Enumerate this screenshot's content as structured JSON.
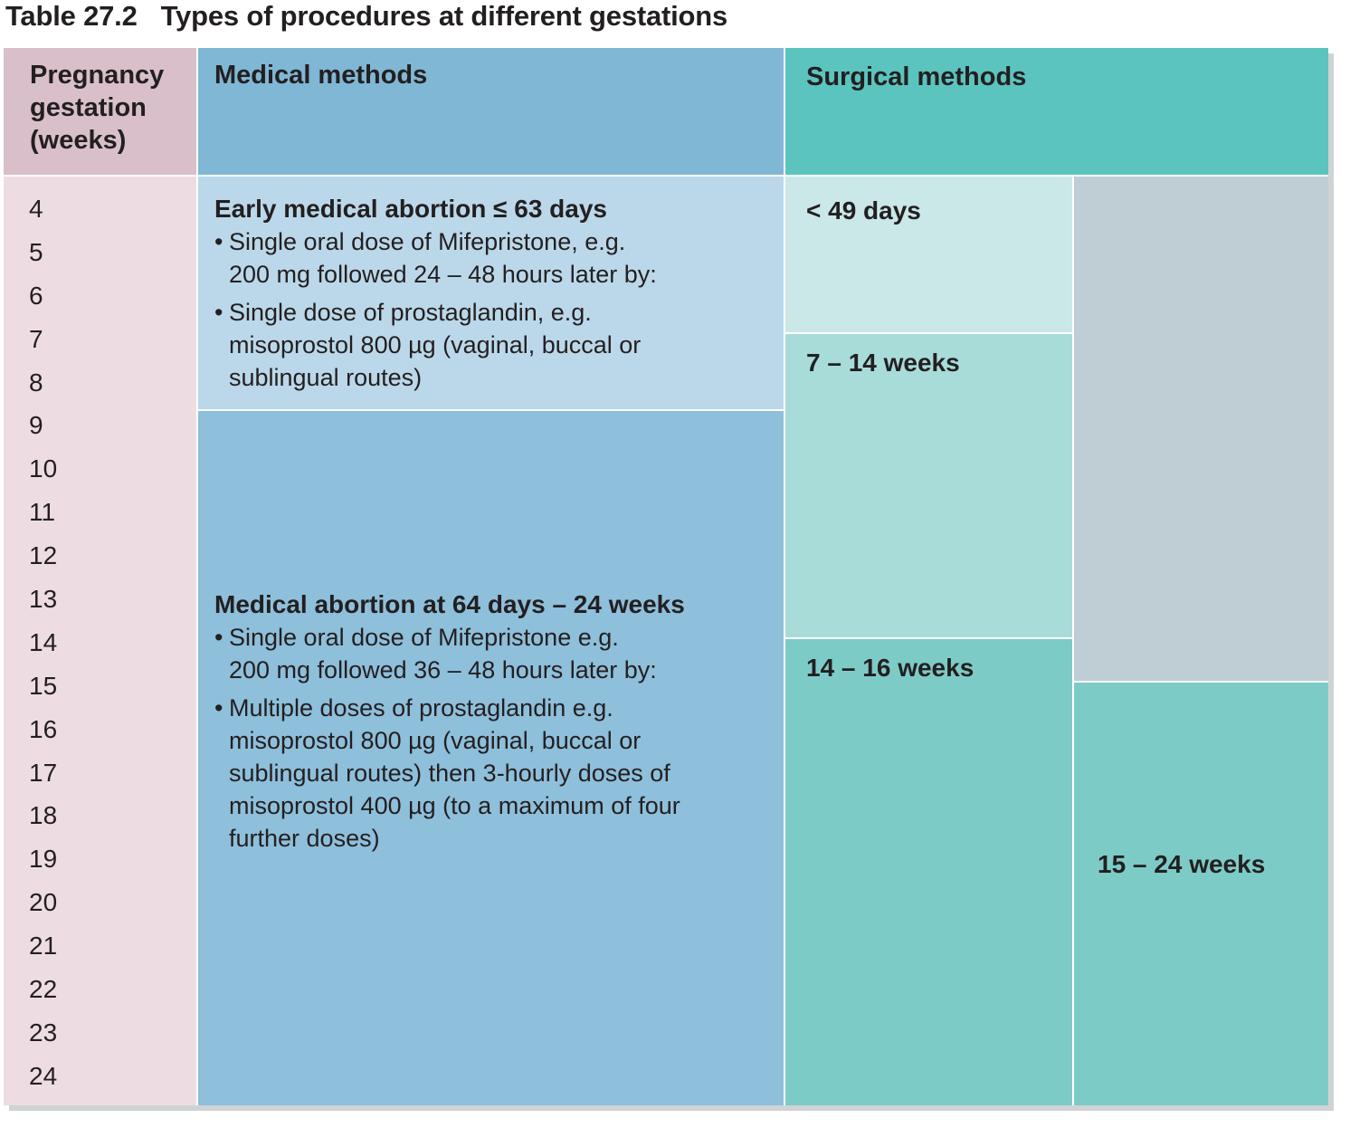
{
  "caption": {
    "number": "Table 27.2",
    "title": "Types of procedures at different gestations"
  },
  "headers": {
    "gestation": [
      "Pregnancy",
      "gestation",
      "(weeks)"
    ],
    "medical": "Medical methods",
    "surgical": "Surgical methods"
  },
  "weeks": [
    "4",
    "5",
    "6",
    "7",
    "8",
    "9",
    "10",
    "11",
    "12",
    "13",
    "14",
    "15",
    "16",
    "17",
    "18",
    "19",
    "20",
    "21",
    "22",
    "23",
    "24"
  ],
  "medical": {
    "early": {
      "heading": "Early medical abortion ≤ 63 days",
      "bullet1": [
        "Single oral dose of Mifepristone, e.g.",
        "200 mg followed 24 – 48 hours later by:"
      ],
      "bullet2": [
        "Single dose of prostaglandin, e.g.",
        "misoprostol 800 µg (vaginal, buccal or",
        "sublingual routes)"
      ]
    },
    "late": {
      "heading": "Medical abortion at 64 days – 24 weeks",
      "bullet1": [
        "Single oral dose of Mifepristone e.g.",
        "200 mg followed 36 – 48 hours later by:"
      ],
      "bullet2": [
        "Multiple doses of prostaglandin e.g.",
        "misoprostol 800 µg (vaginal, buccal or",
        "sublingual routes) then 3-hourly doses of",
        "misoprostol 400 µg (to a maximum of four",
        "further doses)"
      ]
    }
  },
  "surgical": {
    "s1": "< 49 days",
    "s2": "7 – 14 weeks",
    "s3": "14 – 16 weeks",
    "s4": "15 – 24 weeks"
  },
  "colors": {
    "gestation_header": "#d9bfc9",
    "gestation_body": "#eddde3",
    "medical_header": "#7fb7d5",
    "medical_early": "#bbd8ea",
    "medical_late": "#8ebfdb",
    "surgical_header": "#5bc4bf",
    "surgical_s1": "#c9e8e7",
    "surgical_s2": "#a7dcd9",
    "surgical_s3": "#7dcbc7",
    "surgical_s4": "#7dcbc7",
    "surgical_empty": "#bfcdd4"
  }
}
